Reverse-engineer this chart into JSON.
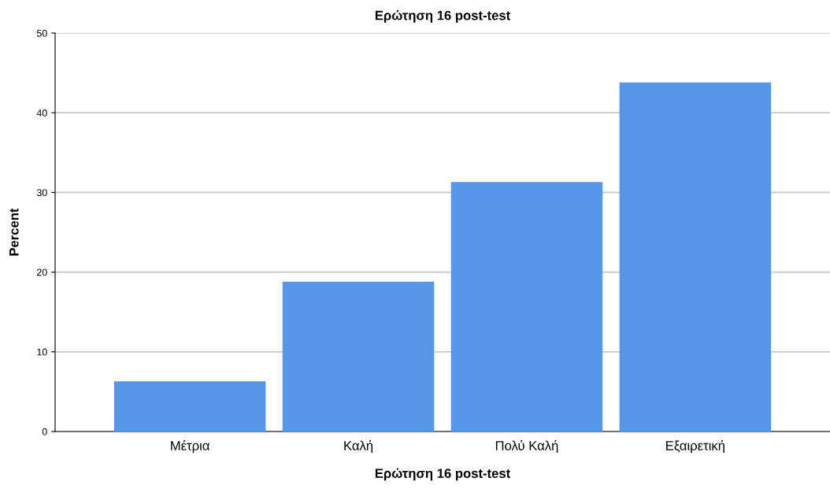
{
  "chart_data": {
    "type": "bar",
    "title": "Ερώτηση 16 post-test",
    "xlabel": "Ερώτηση 16 post-test",
    "ylabel": "Percent",
    "categories": [
      "Μέτρια",
      "Καλή",
      "Πολύ Καλή",
      "Εξαιρετική"
    ],
    "values": [
      6.3,
      18.8,
      31.3,
      43.8
    ],
    "color": "#5596e6",
    "ylim": [
      0,
      50
    ],
    "yticks": [
      0,
      10,
      20,
      30,
      40,
      50
    ],
    "grid": "y"
  }
}
